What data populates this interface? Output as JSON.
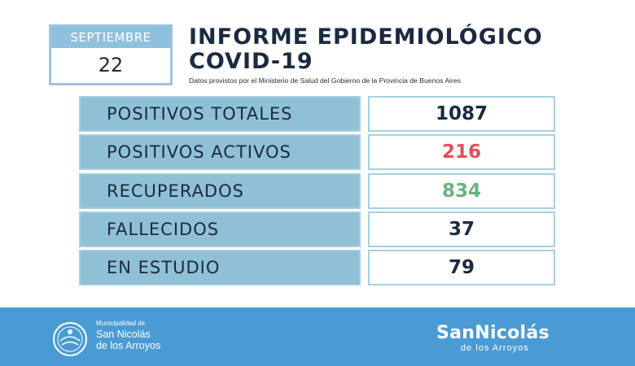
{
  "date": {
    "month": "SEPTIEMBRE",
    "day": "22"
  },
  "header": {
    "title_line1": "INFORME EPIDEMIOLÓGICO",
    "title_line2": "COVID-19",
    "source": "Datos provistos por el Ministerio de Salud del Gobierno de la Provincia de Buenos Aires"
  },
  "stats": [
    {
      "label": "POSITIVOS TOTALES",
      "value": "1087",
      "color": "#1b2a3f"
    },
    {
      "label": "POSITIVOS ACTIVOS",
      "value": "216",
      "color": "#e0505a"
    },
    {
      "label": "RECUPERADOS",
      "value": "834",
      "color": "#6ab37d"
    },
    {
      "label": "FALLECIDOS",
      "value": "37",
      "color": "#1b2a3f"
    },
    {
      "label": "EN ESTUDIO",
      "value": "79",
      "color": "#1b2a3f"
    }
  ],
  "footer": {
    "muni_small": "Municipalidad de",
    "muni_line1": "San Nicolás",
    "muni_line2": "de los Arroyos",
    "brand_name": "SanNicolás",
    "brand_sub": "de los Arroyos",
    "background_color": "#4a9bd3"
  }
}
